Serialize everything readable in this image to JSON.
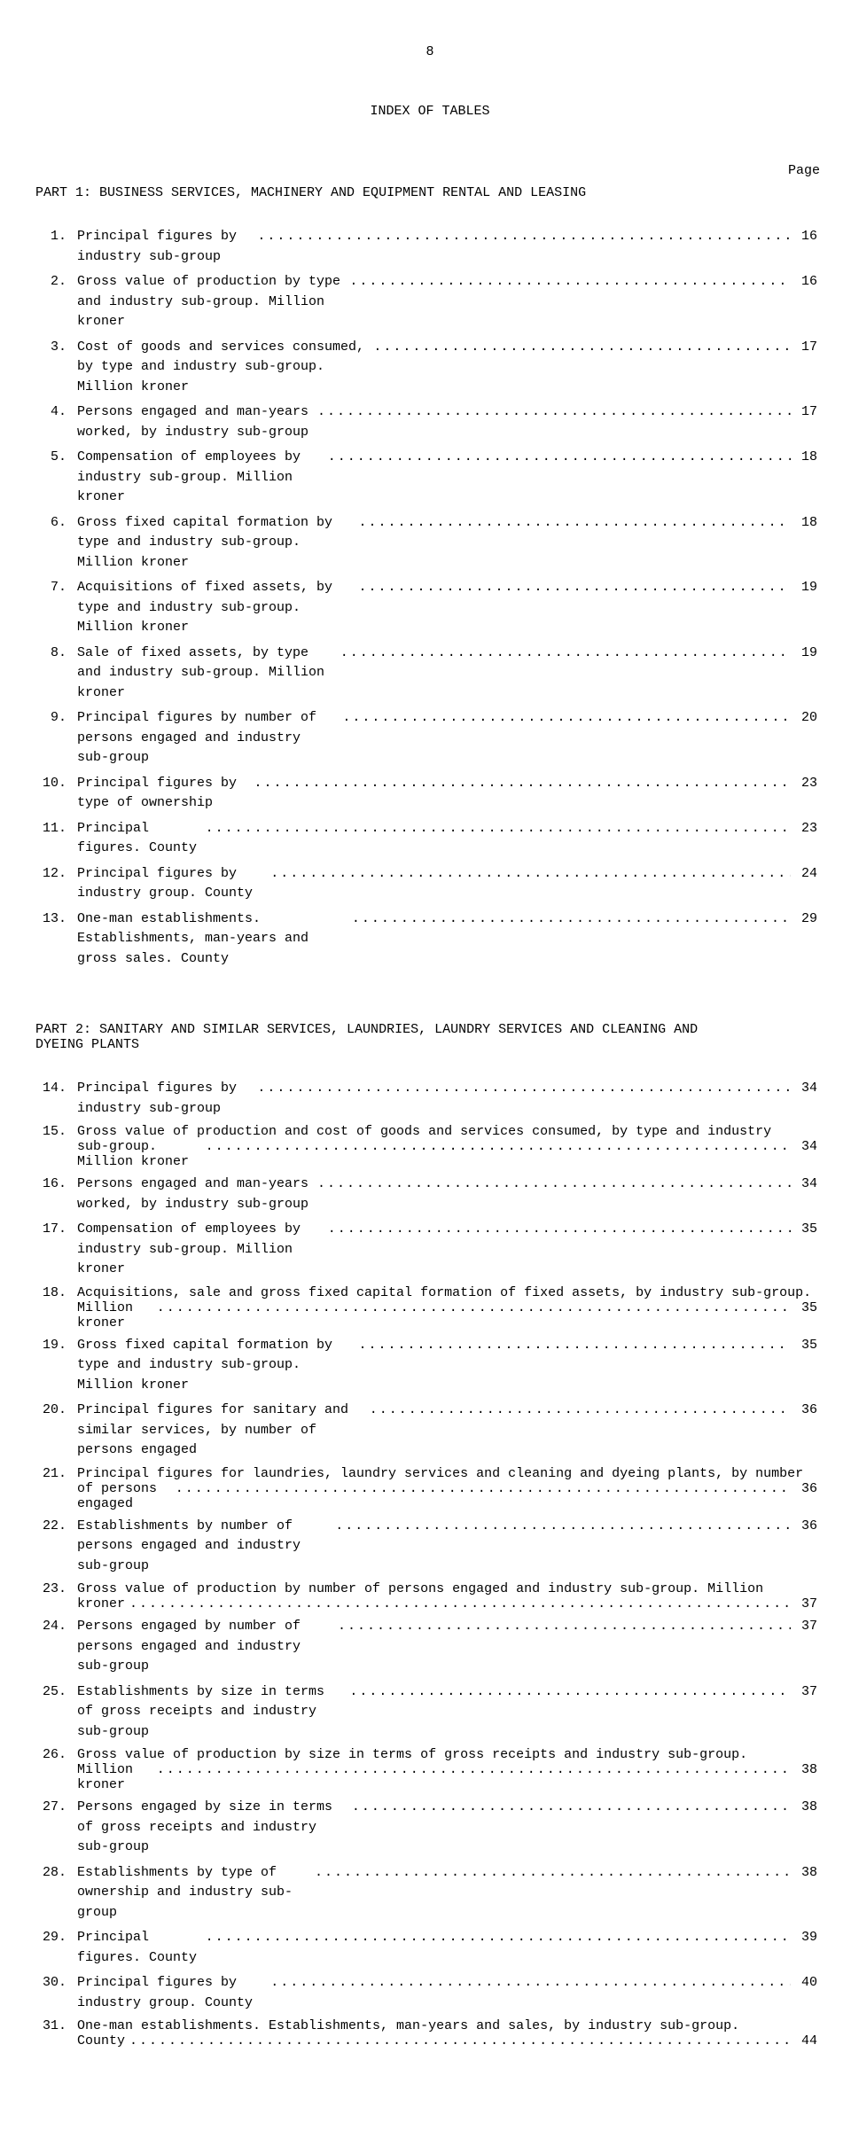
{
  "pageNumberTop": "8",
  "title": "INDEX OF TABLES",
  "pageLabel": "Page",
  "part1": {
    "heading": "PART 1:  BUSINESS SERVICES, MACHINERY AND EQUIPMENT RENTAL AND LEASING",
    "entries": [
      {
        "num": "1.",
        "text": "Principal figures by industry sub-group",
        "page": "16"
      },
      {
        "num": "2.",
        "text": "Gross value of production by type and industry sub-group.  Million kroner",
        "page": "16"
      },
      {
        "num": "3.",
        "text": "Cost of goods and services consumed, by type and industry sub-group.  Million kroner",
        "page": "17"
      },
      {
        "num": "4.",
        "text": "Persons engaged and man-years worked, by industry sub-group",
        "page": "17"
      },
      {
        "num": "5.",
        "text": "Compensation of employees by industry sub-group.  Million kroner",
        "page": "18"
      },
      {
        "num": "6.",
        "text": "Gross fixed capital formation by type and industry sub-group.  Million kroner",
        "page": "18"
      },
      {
        "num": "7.",
        "text": "Acquisitions of fixed assets, by type and industry sub-group.  Million kroner",
        "page": "19"
      },
      {
        "num": "8.",
        "text": "Sale of fixed assets, by type and industry sub-group.  Million kroner",
        "page": "19"
      },
      {
        "num": "9.",
        "text": "Principal figures by number of persons engaged and industry sub-group",
        "page": "20"
      },
      {
        "num": "10.",
        "text": "Principal figures by type of ownership",
        "page": "23"
      },
      {
        "num": "11.",
        "text": "Principal figures.  County",
        "page": "23"
      },
      {
        "num": "12.",
        "text": "Principal figures by industry group.  County",
        "page": "24"
      },
      {
        "num": "13.",
        "text": "One-man establishments.  Establishments, man-years and gross sales.  County",
        "page": "29"
      }
    ]
  },
  "part2": {
    "heading1": "PART 2:  SANITARY AND SIMILAR SERVICES, LAUNDRIES, LAUNDRY SERVICES AND CLEANING AND",
    "heading2": "DYEING PLANTS",
    "entries": [
      {
        "num": "14.",
        "text": "Principal figures by industry sub-group",
        "page": "34"
      },
      {
        "num": "15.",
        "text1": "Gross value of production and cost of goods and services consumed, by type and industry",
        "text2": "sub-group.  Million kroner",
        "page": "34",
        "multi": true
      },
      {
        "num": "16.",
        "text": "Persons engaged and man-years worked, by industry sub-group",
        "page": "34"
      },
      {
        "num": "17.",
        "text": "Compensation of employees by industry sub-group.  Million kroner",
        "page": "35"
      },
      {
        "num": "18.",
        "text1": "Acquisitions, sale and gross fixed capital formation of fixed assets, by industry sub-group.",
        "text2": "Million kroner",
        "page": "35",
        "multi": true
      },
      {
        "num": "19.",
        "text": "Gross fixed capital formation by type and industry sub-group.  Million kroner",
        "page": "35"
      },
      {
        "num": "20.",
        "text": "Principal figures for sanitary and similar services, by number of persons engaged",
        "page": "36"
      },
      {
        "num": "21.",
        "text1": "Principal figures for laundries, laundry services and cleaning and dyeing plants, by number",
        "text2": "of persons engaged",
        "page": "36",
        "multi": true
      },
      {
        "num": "22.",
        "text": "Establishments by number of persons engaged and industry sub-group",
        "page": "36"
      },
      {
        "num": "23.",
        "text1": "Gross value of production by number of persons engaged and industry sub-group.  Million",
        "text2": "kroner",
        "page": "37",
        "multi": true
      },
      {
        "num": "24.",
        "text": "Persons engaged by number of persons engaged and industry sub-group",
        "page": "37"
      },
      {
        "num": "25.",
        "text": "Establishments by size in terms of gross receipts and industry sub-group",
        "page": "37"
      },
      {
        "num": "26.",
        "text1": "Gross value of production by size in terms of gross receipts and industry sub-group.",
        "text2": "Million kroner",
        "page": "38",
        "multi": true
      },
      {
        "num": "27.",
        "text": "Persons engaged by size in terms of gross receipts and industry sub-group",
        "page": "38"
      },
      {
        "num": "28.",
        "text": "Establishments by type of ownership and industry sub-group",
        "page": "38"
      },
      {
        "num": "29.",
        "text": "Principal figures.  County",
        "page": "39"
      },
      {
        "num": "30.",
        "text": "Principal figures by industry group.  County",
        "page": "40"
      },
      {
        "num": "31.",
        "text1": "One-man establishments.  Establishments, man-years and sales, by industry sub-group.",
        "text2": "County",
        "page": "44",
        "multi": true
      }
    ]
  },
  "dotFill": "................................................................................................"
}
